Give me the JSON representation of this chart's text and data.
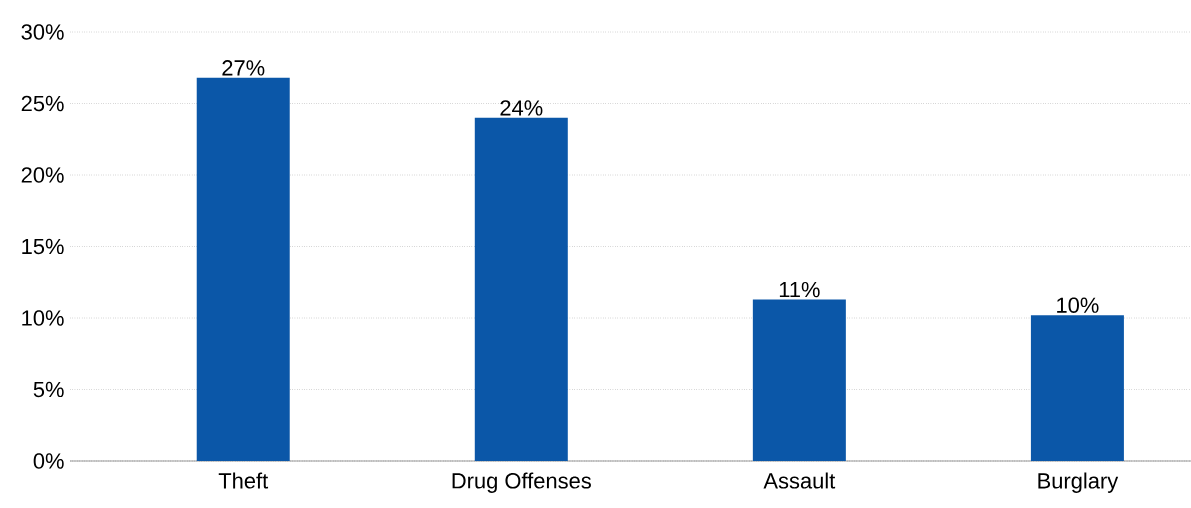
{
  "chart_data": {
    "type": "bar",
    "categories": [
      "Theft",
      "Drug Offenses",
      "Assault",
      "Burglary"
    ],
    "values": [
      26.8,
      24.0,
      11.3,
      10.2
    ],
    "value_labels": [
      "27%",
      "24%",
      "11%",
      "10%"
    ],
    "color": "#0b57a8",
    "ylim": [
      0,
      30
    ],
    "yticks": [
      {
        "value": 0,
        "label": "0%"
      },
      {
        "value": 5,
        "label": "5%"
      },
      {
        "value": 10,
        "label": "10%"
      },
      {
        "value": 15,
        "label": "15%"
      },
      {
        "value": 20,
        "label": "20%"
      },
      {
        "value": 25,
        "label": "25%"
      },
      {
        "value": 30,
        "label": "30%"
      }
    ],
    "grid": "y"
  }
}
